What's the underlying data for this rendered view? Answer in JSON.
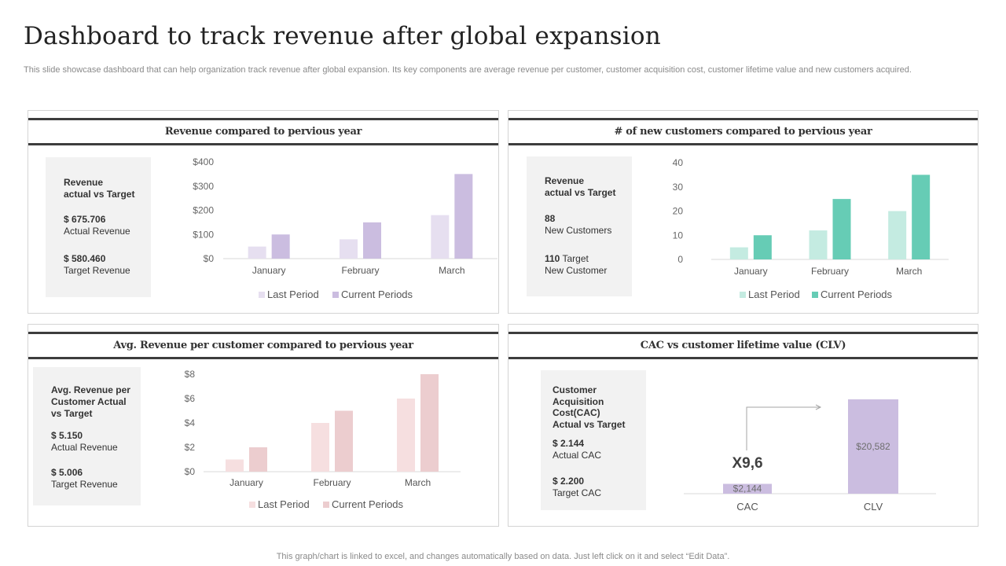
{
  "page": {
    "title": "Dashboard to track revenue after global expansion",
    "subtitle": "This slide showcase dashboard that can help organization track revenue after global expansion. Its key components are average revenue per customer, customer acquisition cost, customer lifetime value and new customers acquired.",
    "footer": "This graph/chart is linked to excel,  and changes automatically based on data. Just left click on it and select “Edit Data”."
  },
  "panels": {
    "revenue": {
      "title": "Revenue compared to pervious year",
      "kpi_heading_1": "Revenue",
      "kpi_heading_2": "actual vs Target",
      "kpi_value_1": "$ 675.706",
      "kpi_label_1": "Actual Revenue",
      "kpi_value_2": "$ 580.460",
      "kpi_label_2": "Target Revenue"
    },
    "customers": {
      "title": "# of new customers compared to pervious year",
      "kpi_heading_1": "Revenue",
      "kpi_heading_2": "actual vs Target",
      "kpi_value_1": "88",
      "kpi_label_1": "New Customers",
      "kpi_value_2": "110",
      "kpi_value_2_suffix": "Target",
      "kpi_label_2": "New Customer"
    },
    "avg_revenue": {
      "title": "Avg. Revenue per customer compared to pervious year",
      "kpi_heading_1": "Avg. Revenue per",
      "kpi_heading_2": "Customer Actual",
      "kpi_heading_3": "vs Target",
      "kpi_value_1": "$ 5.150",
      "kpi_label_1": "Actual Revenue",
      "kpi_value_2": "$ 5.006",
      "kpi_label_2": "Target Revenue"
    },
    "cac_clv": {
      "title": "CAC vs customer lifetime value (CLV)",
      "kpi_heading_1": "Customer",
      "kpi_heading_2": "Acquisition",
      "kpi_heading_3": "Cost(CAC)",
      "kpi_heading_4": "Actual vs Target",
      "kpi_value_1": "$ 2.144",
      "kpi_label_1": "Actual CAC",
      "kpi_value_2": "$ 2.200",
      "kpi_label_2": "Target CAC",
      "multiplier": "X9,6"
    }
  },
  "chart_data": [
    {
      "id": "revenue",
      "type": "bar",
      "categories": [
        "January",
        "February",
        "March"
      ],
      "series": [
        {
          "name": "Last Period",
          "values": [
            50,
            80,
            180
          ],
          "color": "#e6dff0"
        },
        {
          "name": "Current Periods",
          "values": [
            100,
            150,
            350
          ],
          "color": "#cbbde0"
        }
      ],
      "ylim": [
        0,
        400
      ],
      "yticks": [
        0,
        100,
        200,
        300,
        400
      ],
      "ytick_labels": [
        "$0",
        "$100",
        "$200",
        "$300",
        "$400"
      ],
      "legend": "bottom"
    },
    {
      "id": "customers",
      "type": "bar",
      "categories": [
        "January",
        "February",
        "March"
      ],
      "series": [
        {
          "name": "Last Period",
          "values": [
            5,
            12,
            20
          ],
          "color": "#c4ebe1"
        },
        {
          "name": "Current Periods",
          "values": [
            10,
            25,
            35
          ],
          "color": "#66ccb5"
        }
      ],
      "ylim": [
        0,
        40
      ],
      "yticks": [
        0,
        10,
        20,
        30,
        40
      ],
      "ytick_labels": [
        "0",
        "10",
        "20",
        "30",
        "40"
      ],
      "legend": "bottom"
    },
    {
      "id": "avg_revenue",
      "type": "bar",
      "categories": [
        "January",
        "February",
        "March"
      ],
      "series": [
        {
          "name": "Last Period",
          "values": [
            1,
            4,
            6
          ],
          "color": "#f6dfe0"
        },
        {
          "name": "Current Periods",
          "values": [
            2,
            5,
            8
          ],
          "color": "#eccdcf"
        }
      ],
      "ylim": [
        0,
        8
      ],
      "yticks": [
        0,
        2,
        4,
        6,
        8
      ],
      "ytick_labels": [
        "$0",
        "$2",
        "$4",
        "$6",
        "$8"
      ],
      "legend": "bottom"
    },
    {
      "id": "cac_clv",
      "type": "bar",
      "categories": [
        "CAC",
        "CLV"
      ],
      "values": [
        2144,
        20582
      ],
      "data_labels": [
        "$2,144",
        "$20,582"
      ],
      "color": "#cbbde0"
    }
  ]
}
